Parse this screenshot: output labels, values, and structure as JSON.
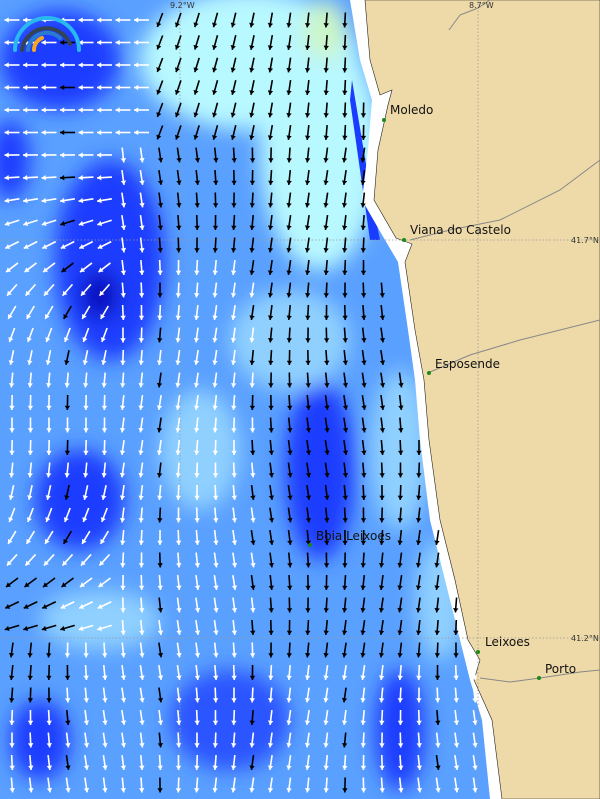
{
  "map": {
    "grid": {
      "lon_labels": [
        "9.2°W",
        "8.7°W"
      ],
      "lat_labels": [
        "41.7°N",
        "41.2°N"
      ]
    },
    "places": [
      {
        "name": "Moledo"
      },
      {
        "name": "Viana do Castelo"
      },
      {
        "name": "Esposende"
      },
      {
        "name": "Boia Leixoes"
      },
      {
        "name": "Leixoes"
      },
      {
        "name": "Porto"
      }
    ],
    "colors": {
      "land": "#eedaa8",
      "coast_shallow": "#ffffff",
      "ocean_deep": "#0a1eff",
      "ocean_mid": "#3a7aff",
      "ocean_light": "#8fd0ff",
      "ocean_pale": "#b8f8ff",
      "calm": "#ccf5c8",
      "place_marker": "#1a8a1a",
      "arrow_fast": "#ffffff",
      "arrow_slow": "#000000"
    },
    "logo_icon": "gauge-arc-logo"
  }
}
